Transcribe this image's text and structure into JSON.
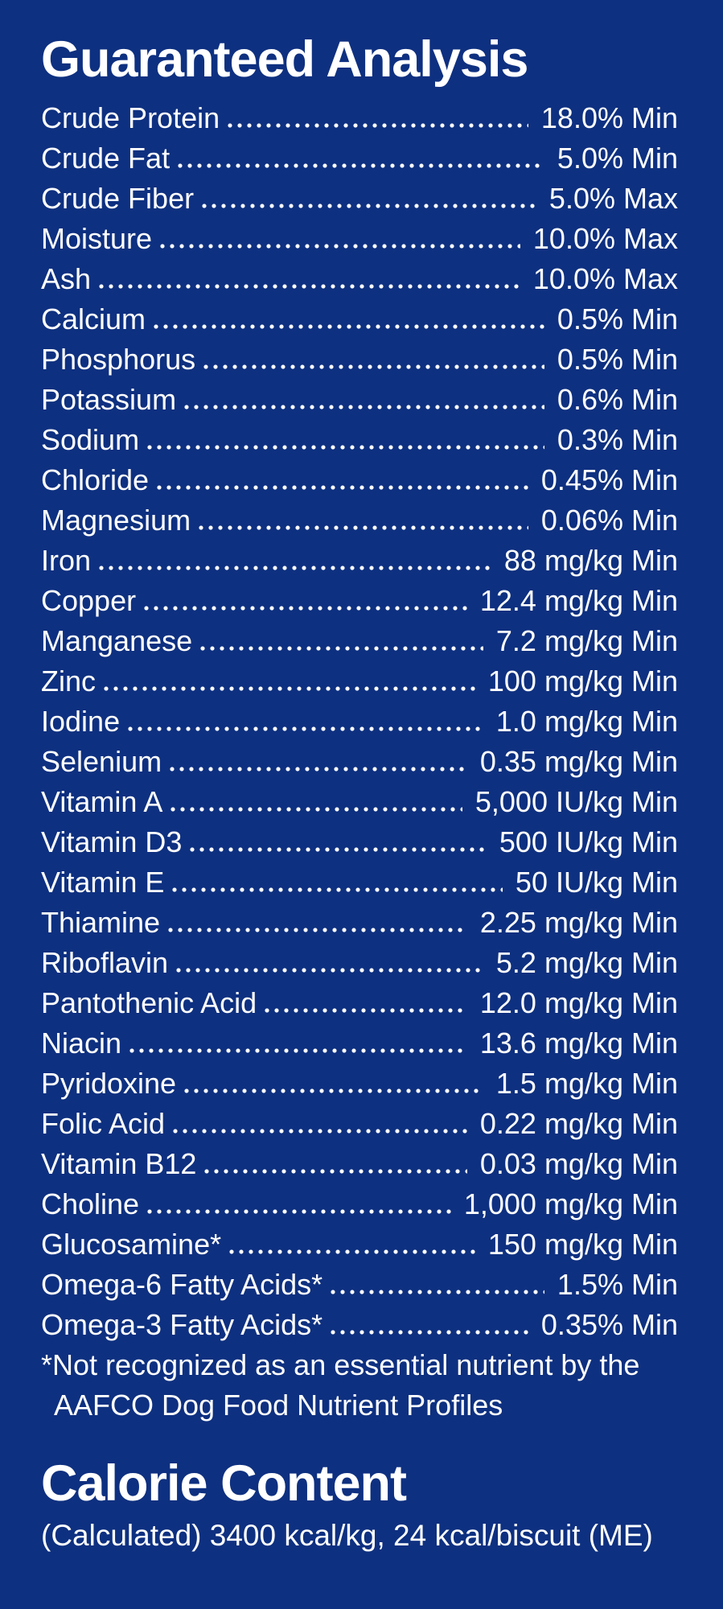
{
  "colors": {
    "background": "#0e3080",
    "text": "#ffffff"
  },
  "guaranteed_analysis": {
    "title": "Guaranteed Analysis",
    "rows": [
      {
        "label": "Crude Protein",
        "value": "18.0% Min"
      },
      {
        "label": "Crude Fat",
        "value": "5.0% Min"
      },
      {
        "label": "Crude Fiber",
        "value": "5.0% Max"
      },
      {
        "label": "Moisture",
        "value": "10.0% Max"
      },
      {
        "label": "Ash",
        "value": "10.0% Max"
      },
      {
        "label": "Calcium",
        "value": "0.5% Min"
      },
      {
        "label": "Phosphorus",
        "value": "0.5% Min"
      },
      {
        "label": "Potassium",
        "value": "0.6% Min"
      },
      {
        "label": "Sodium",
        "value": "0.3% Min"
      },
      {
        "label": "Chloride",
        "value": "0.45% Min"
      },
      {
        "label": "Magnesium",
        "value": "0.06% Min"
      },
      {
        "label": "Iron",
        "value": "88 mg/kg Min"
      },
      {
        "label": "Copper",
        "value": "12.4 mg/kg Min"
      },
      {
        "label": "Manganese",
        "value": "7.2 mg/kg Min"
      },
      {
        "label": "Zinc",
        "value": "100 mg/kg Min"
      },
      {
        "label": "Iodine",
        "value": "1.0 mg/kg Min"
      },
      {
        "label": "Selenium",
        "value": "0.35 mg/kg Min"
      },
      {
        "label": "Vitamin A",
        "value": "5,000 IU/kg Min"
      },
      {
        "label": "Vitamin D3",
        "value": "500 IU/kg Min"
      },
      {
        "label": "Vitamin E",
        "value": "50 IU/kg Min"
      },
      {
        "label": "Thiamine",
        "value": "2.25 mg/kg Min"
      },
      {
        "label": "Riboflavin",
        "value": "5.2 mg/kg Min"
      },
      {
        "label": "Pantothenic Acid",
        "value": "12.0 mg/kg Min"
      },
      {
        "label": "Niacin",
        "value": "13.6 mg/kg Min"
      },
      {
        "label": "Pyridoxine",
        "value": "1.5 mg/kg Min"
      },
      {
        "label": "Folic Acid",
        "value": "0.22 mg/kg Min"
      },
      {
        "label": "Vitamin B12",
        "value": "0.03 mg/kg Min"
      },
      {
        "label": "Choline",
        "value": "1,000 mg/kg Min"
      },
      {
        "label": "Glucosamine*",
        "value": "150 mg/kg Min"
      },
      {
        "label": "Omega-6 Fatty Acids*",
        "value": "1.5% Min"
      },
      {
        "label": "Omega-3 Fatty Acids*",
        "value": "0.35% Min"
      }
    ],
    "footnote_lines": [
      "*Not recognized as an essential nutrient by the",
      "AAFCO Dog Food Nutrient Profiles"
    ]
  },
  "calorie_content": {
    "title": "Calorie Content",
    "detail": "(Calculated) 3400 kcal/kg, 24 kcal/biscuit (ME)"
  }
}
